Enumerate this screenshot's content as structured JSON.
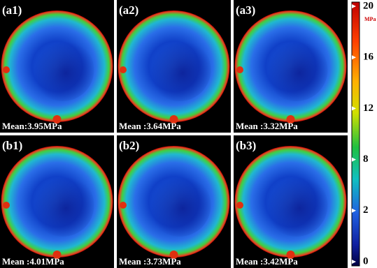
{
  "panels": [
    {
      "label": "(a1)",
      "mean": "Mean:3.95MPa"
    },
    {
      "label": "(a2)",
      "mean": "Mean :3.64MPa"
    },
    {
      "label": "(a3)",
      "mean": "Mean :3.32MPa"
    },
    {
      "label": "(b1)",
      "mean": "Mean :4.01MPa"
    },
    {
      "label": "(b2)",
      "mean": "Mean :3.73MPa"
    },
    {
      "label": "(b3)",
      "mean": "Mean :3.42MPa"
    }
  ],
  "colorbar": {
    "unit": "MPa",
    "ticks": [
      20,
      16,
      12,
      8,
      2,
      0
    ]
  }
}
